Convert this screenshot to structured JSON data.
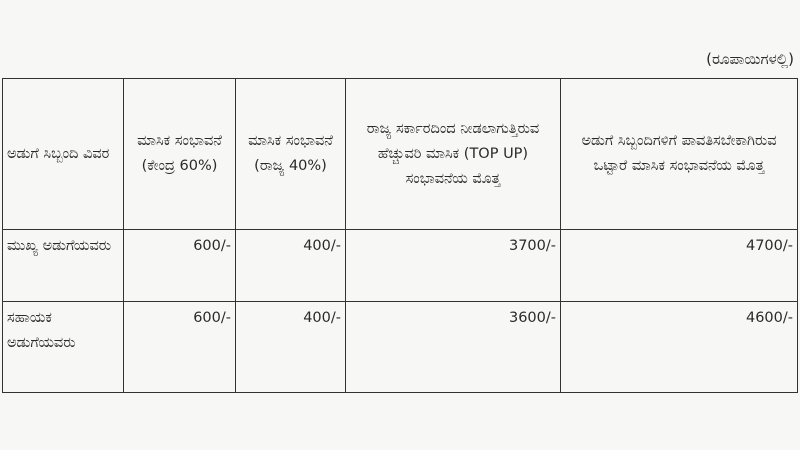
{
  "unit_note": "(ರೂಪಾಯಿಗಳಲ್ಲಿ)",
  "table": {
    "headers": [
      "ಅಡುಗೆ ಸಿಬ್ಬಂದಿ ವಿವರ",
      "ಮಾಸಿಕ ಸಂಭಾವನೆ (ಕೇಂದ್ರ 60%)",
      "ಮಾಸಿಕ ಸಂಭಾವನೆ (ರಾಜ್ಯ 40%)",
      "ರಾಜ್ಯ ಸರ್ಕಾರದಿಂದ ನೀಡಲಾಗುತ್ತಿರುವ ಹೆಚ್ಚುವರಿ ಮಾಸಿಕ (TOP UP) ಸಂಭಾವನೆಯ ಮೊತ್ತ",
      "ಅಡುಗೆ ಸಿಬ್ಬಂದಿಗಳಿಗೆ ಪಾವತಿಸಬೇಕಾಗಿರುವ ಒಟ್ಟಾರೆ ಮಾಸಿಕ ಸಂಭಾವನೆಯ ಮೊತ್ತ"
    ],
    "rows": [
      [
        "ಮುಖ್ಯ ಅಡುಗೆಯವರು",
        "600/-",
        "400/-",
        "3700/-",
        "4700/-"
      ],
      [
        "ಸಹಾಯಕ ಅಡುಗೆಯವರು",
        "600/-",
        "400/-",
        "3600/-",
        "4600/-"
      ]
    ]
  }
}
